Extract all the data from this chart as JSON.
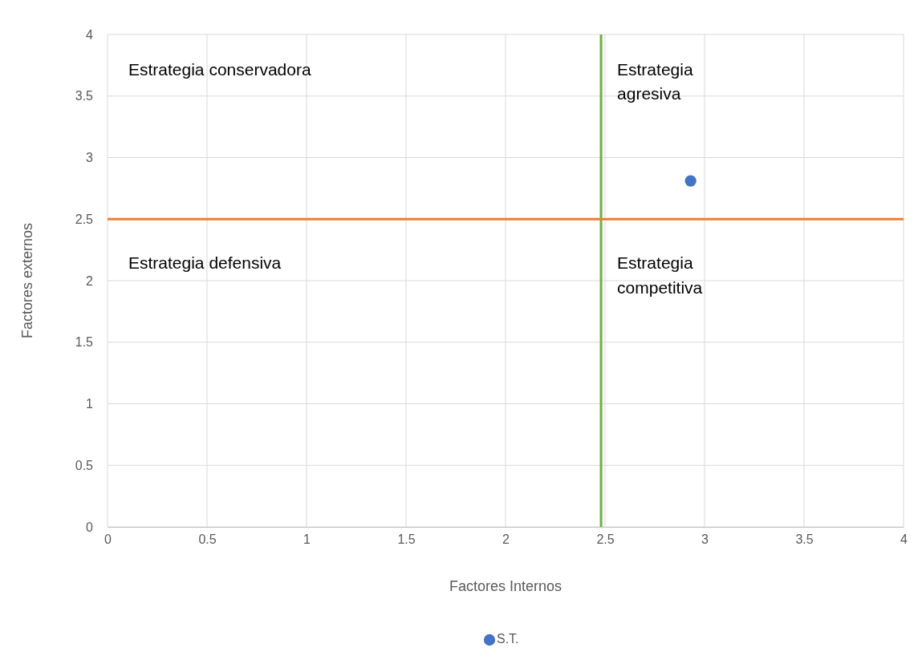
{
  "chart_data": {
    "type": "scatter",
    "xlabel": "Factores Internos",
    "ylabel": "Factores externos",
    "xlim": [
      0,
      4
    ],
    "ylim": [
      0,
      4
    ],
    "xticks": [
      0,
      0.5,
      1,
      1.5,
      2,
      2.5,
      3,
      3.5,
      4
    ],
    "yticks": [
      0,
      0.5,
      1,
      1.5,
      2,
      2.5,
      3,
      3.5,
      4
    ],
    "grid": true,
    "legend": "bottom",
    "marker": "circle",
    "series": [
      {
        "name": "S.T.",
        "color": "#4472c4",
        "x": [
          2.93
        ],
        "values": [
          2.81
        ]
      }
    ],
    "ref_lines": [
      {
        "axis": "x",
        "value": 2.48,
        "color": "#70ad47"
      },
      {
        "axis": "y",
        "value": 2.5,
        "color": "#ed7d31"
      }
    ],
    "annotations": [
      "Estrategia conservadora",
      "Estrategia\nagresiva",
      "Estrategia defensiva",
      "Estrategia\ncompetitiva"
    ]
  }
}
